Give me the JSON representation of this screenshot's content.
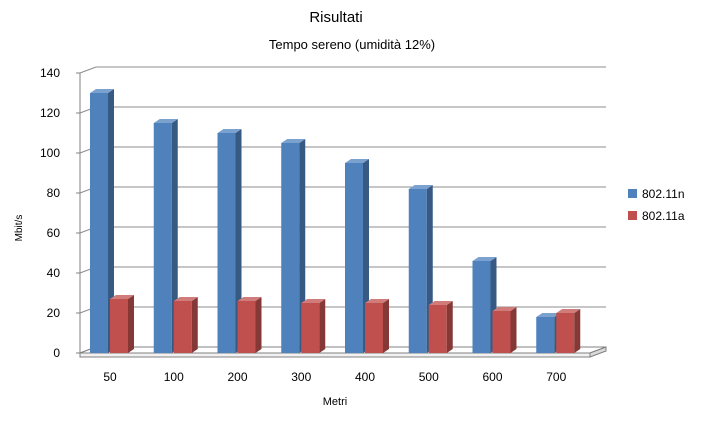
{
  "chart_data": {
    "type": "bar",
    "title": "Risultati",
    "subtitle": "Tempo sereno (umidità 12%)",
    "xlabel": "Metri",
    "ylabel": "Mbit/s",
    "categories": [
      "50",
      "100",
      "200",
      "300",
      "400",
      "500",
      "600",
      "700"
    ],
    "series": [
      {
        "name": "802.11n",
        "color": "#4f81bd",
        "values": [
          130,
          115,
          110,
          105,
          95,
          82,
          46,
          18
        ]
      },
      {
        "name": "802.11a",
        "color": "#c0504d",
        "values": [
          27,
          26,
          26,
          25,
          25,
          24,
          21,
          20
        ]
      }
    ],
    "ylim": [
      0,
      140
    ],
    "yticks": [
      0,
      20,
      40,
      60,
      80,
      100,
      120,
      140
    ],
    "grid": true,
    "legend_position": "right",
    "style": "3d-clustered-column"
  }
}
